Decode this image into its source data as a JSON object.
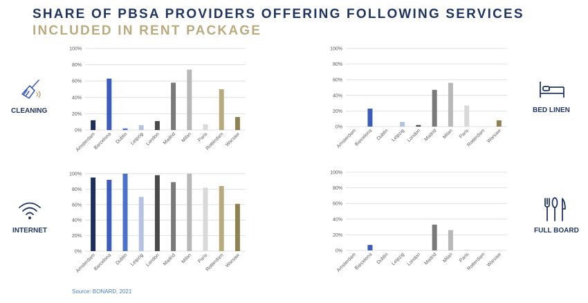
{
  "title_line1": "SHARE OF PBSA PROVIDERS OFFERING FOLLOWING SERVICES",
  "title_line2": "INCLUDED IN RENT PACKAGE",
  "source": "Source: BONARD, 2021",
  "colors": {
    "title": "#1f3461",
    "subtitle": "#b9ab7e",
    "cities": [
      "#1e2d5a",
      "#3b5cb8",
      "#4a72c9",
      "#b5c3e0",
      "#4a4a4a",
      "#7a7a7a",
      "#b8b8b8",
      "#d9d9d9",
      "#b7aa7c",
      "#8d8152"
    ]
  },
  "icons": {
    "cleaning": {
      "name": "broom-icon",
      "label": "CLEANING"
    },
    "bed_linen": {
      "name": "bed-icon",
      "label": "BED LINEN"
    },
    "internet": {
      "name": "wifi-icon",
      "label": "INTERNET"
    },
    "full_board": {
      "name": "cutlery-icon",
      "label": "FULL BOARD"
    }
  },
  "chart_data": [
    {
      "type": "bar",
      "title": "",
      "categories": [
        "Amsterdam",
        "Barcelona",
        "Dublin",
        "Leipzig",
        "London",
        "Madrid",
        "Milan",
        "Paris",
        "Rotterdam",
        "Warsaw"
      ],
      "values": [
        12,
        63,
        2,
        6,
        11,
        58,
        74,
        7,
        50,
        16
      ],
      "ylim": [
        0,
        100
      ],
      "yticks": [
        "0%",
        "20%",
        "40%",
        "60%",
        "80%",
        "100%"
      ],
      "grid": true
    },
    {
      "type": "bar",
      "title": "",
      "categories": [
        "Amsterdam",
        "Barcelona",
        "Dublin",
        "Leipzig",
        "London",
        "Madrid",
        "Milan",
        "Paris",
        "Rotterdam",
        "Warsaw"
      ],
      "values": [
        0,
        23,
        0,
        6,
        2,
        47,
        56,
        27,
        0,
        8
      ],
      "ylim": [
        0,
        100
      ],
      "yticks": [
        "0%",
        "20%",
        "40%",
        "60%",
        "80%",
        "100%"
      ],
      "grid": true
    },
    {
      "type": "bar",
      "title": "",
      "categories": [
        "Amsterdam",
        "Barcelona",
        "Dublin",
        "Leipzig",
        "London",
        "Madrid",
        "Milan",
        "Paris",
        "Rotterdam",
        "Warsaw"
      ],
      "values": [
        95,
        92,
        100,
        70,
        98,
        89,
        100,
        82,
        84,
        61
      ],
      "ylim": [
        0,
        100
      ],
      "yticks": [
        "0%",
        "20%",
        "40%",
        "60%",
        "80%",
        "100%"
      ],
      "grid": true
    },
    {
      "type": "bar",
      "title": "",
      "categories": [
        "Amsterdam",
        "Barcelona",
        "Dublin",
        "Leipzig",
        "London",
        "Madrid",
        "Milan",
        "Paris",
        "Rotterdam",
        "Warsaw"
      ],
      "values": [
        0,
        7,
        0,
        0,
        0,
        33,
        26,
        1,
        0,
        0
      ],
      "ylim": [
        0,
        100
      ],
      "yticks": [
        "0%",
        "20%",
        "40%",
        "60%",
        "80%",
        "100%"
      ],
      "grid": true
    }
  ]
}
